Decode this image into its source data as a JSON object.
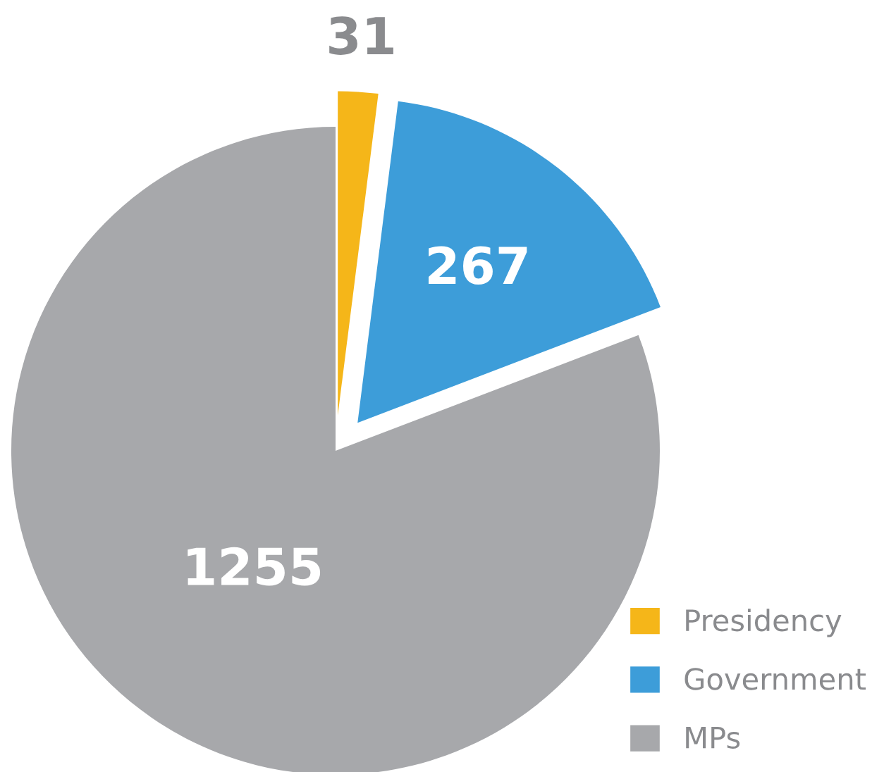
{
  "chart_data": {
    "type": "pie",
    "categories": [
      "Presidency",
      "Government",
      "MPs"
    ],
    "values": [
      31,
      267,
      1255
    ],
    "colors": [
      "#f5b619",
      "#3d9dd9",
      "#a7a8ab"
    ],
    "data_labels": true,
    "legend": "bottom right"
  }
}
